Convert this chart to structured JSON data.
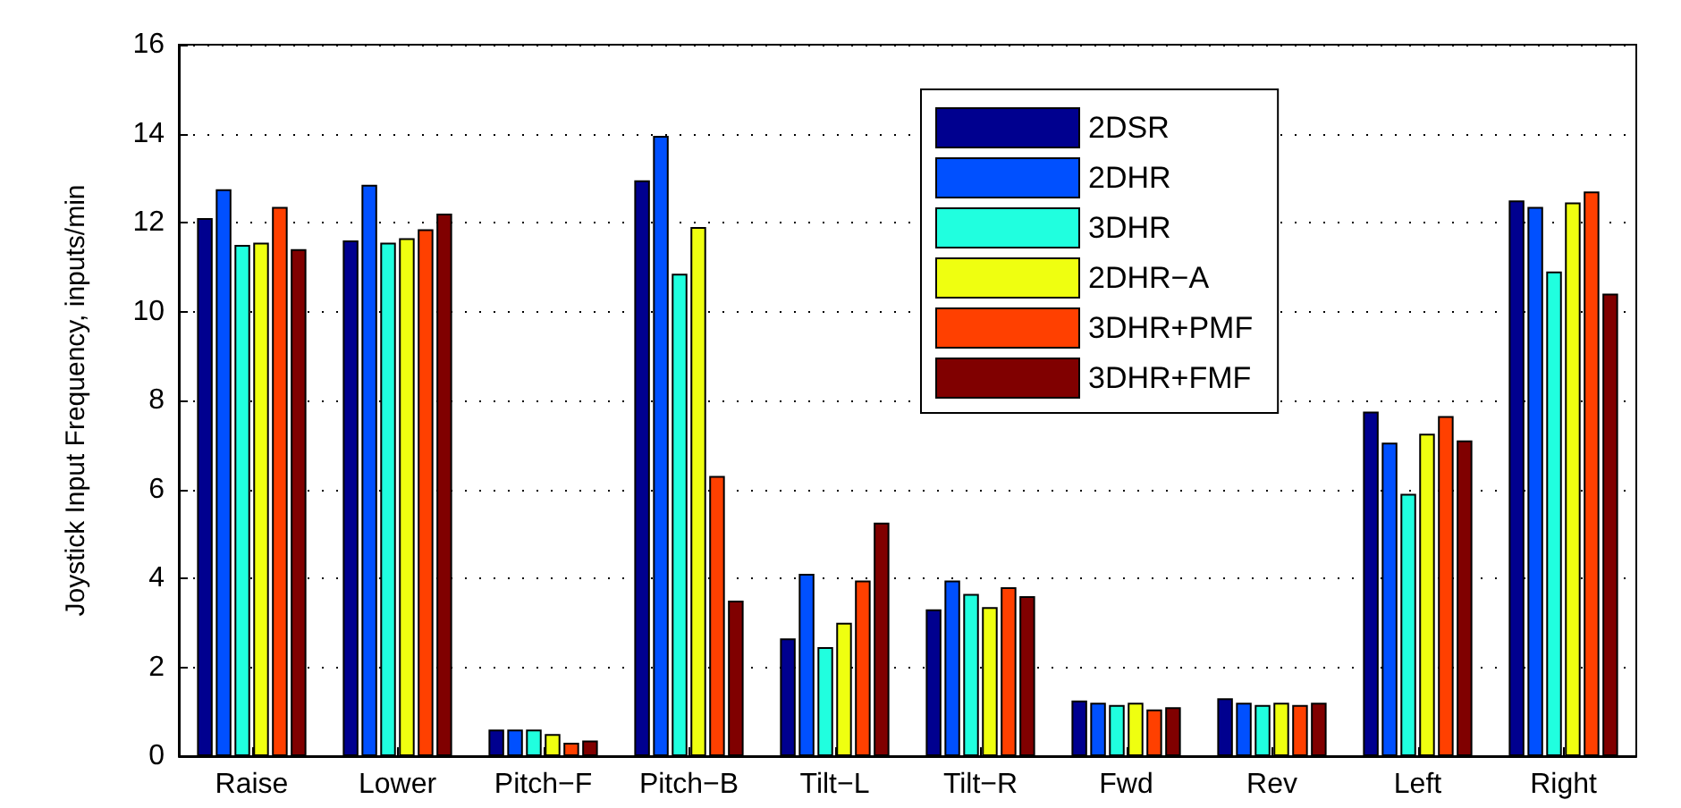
{
  "chart_data": {
    "type": "bar",
    "ylabel": "Joystick Input Frequency, inputs/min",
    "categories": [
      "Raise",
      "Lower",
      "Pitch−F",
      "Pitch−B",
      "Tilt−L",
      "Tilt−R",
      "Fwd",
      "Rev",
      "Left",
      "Right"
    ],
    "series": [
      {
        "name": "2DSR",
        "color": "#00008f",
        "values": [
          12.1,
          11.6,
          0.6,
          12.95,
          2.65,
          3.3,
          1.25,
          1.3,
          7.75,
          12.5
        ]
      },
      {
        "name": "2DHR",
        "color": "#0050ff",
        "values": [
          12.75,
          12.85,
          0.6,
          13.95,
          4.1,
          3.95,
          1.2,
          1.2,
          7.05,
          12.35
        ]
      },
      {
        "name": "3DHR",
        "color": "#20ffdf",
        "values": [
          11.5,
          11.55,
          0.6,
          10.85,
          2.45,
          3.65,
          1.15,
          1.15,
          5.9,
          10.9
        ]
      },
      {
        "name": "2DHR−A",
        "color": "#efff10",
        "values": [
          11.55,
          11.65,
          0.5,
          11.9,
          3.0,
          3.35,
          1.2,
          1.2,
          7.25,
          12.45
        ]
      },
      {
        "name": "3DHR+PMF",
        "color": "#ff4000",
        "values": [
          12.35,
          11.85,
          0.3,
          6.3,
          3.95,
          3.8,
          1.05,
          1.15,
          7.65,
          12.7
        ]
      },
      {
        "name": "3DHR+FMF",
        "color": "#800000",
        "values": [
          11.4,
          12.2,
          0.35,
          3.5,
          5.25,
          3.6,
          1.1,
          1.2,
          7.1,
          10.4
        ]
      }
    ],
    "ylim": [
      0,
      16
    ],
    "yticks": [
      0,
      2,
      4,
      6,
      8,
      10,
      12,
      14,
      16
    ],
    "grid": "y",
    "legend": "top"
  }
}
